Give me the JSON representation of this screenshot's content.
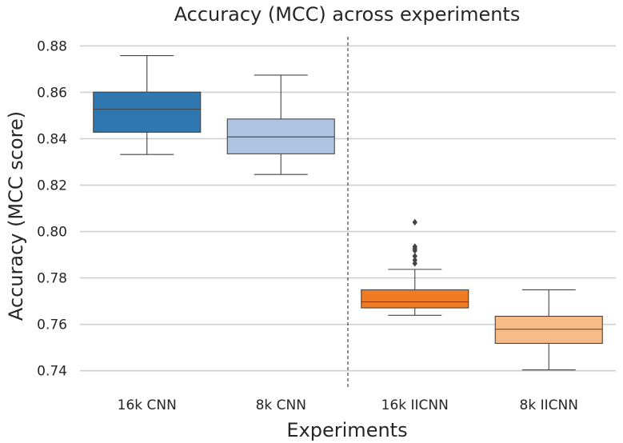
{
  "chart_data": {
    "type": "box",
    "title": "Accuracy (MCC) across experiments",
    "xlabel": "Experiments",
    "ylabel": "Accuracy (MCC score)",
    "ylim": [
      0.733,
      0.886
    ],
    "yticks": [
      0.74,
      0.76,
      0.78,
      0.8,
      0.82,
      0.84,
      0.86,
      0.88
    ],
    "ytick_labels": [
      "0.74",
      "0.76",
      "0.78",
      "0.80",
      "0.82",
      "0.84",
      "0.86",
      "0.88"
    ],
    "grid": true,
    "divider_between": [
      1,
      2
    ],
    "categories": [
      "16k CNN",
      "8k CNN",
      "16k IICNN",
      "8k IICNN"
    ],
    "boxes": [
      {
        "name": "16k CNN",
        "color": "#2f77b1",
        "whislo": 0.8332,
        "q1": 0.8428,
        "median": 0.8527,
        "q3": 0.8601,
        "whishi": 0.8758,
        "outliers": []
      },
      {
        "name": "8k CNN",
        "color": "#adc5e3",
        "whislo": 0.8246,
        "q1": 0.8335,
        "median": 0.8408,
        "q3": 0.8485,
        "whishi": 0.8674,
        "outliers": []
      },
      {
        "name": "16k IICNN",
        "color": "#ef7c22",
        "whislo": 0.7639,
        "q1": 0.7671,
        "median": 0.7697,
        "q3": 0.7749,
        "whishi": 0.7837,
        "outliers": [
          0.7863,
          0.7877,
          0.7894,
          0.7918,
          0.7926,
          0.7935,
          0.804
        ]
      },
      {
        "name": "8k IICNN",
        "color": "#f7bb87",
        "whislo": 0.7404,
        "q1": 0.7518,
        "median": 0.7579,
        "q3": 0.7635,
        "whishi": 0.7749,
        "outliers": []
      }
    ]
  }
}
